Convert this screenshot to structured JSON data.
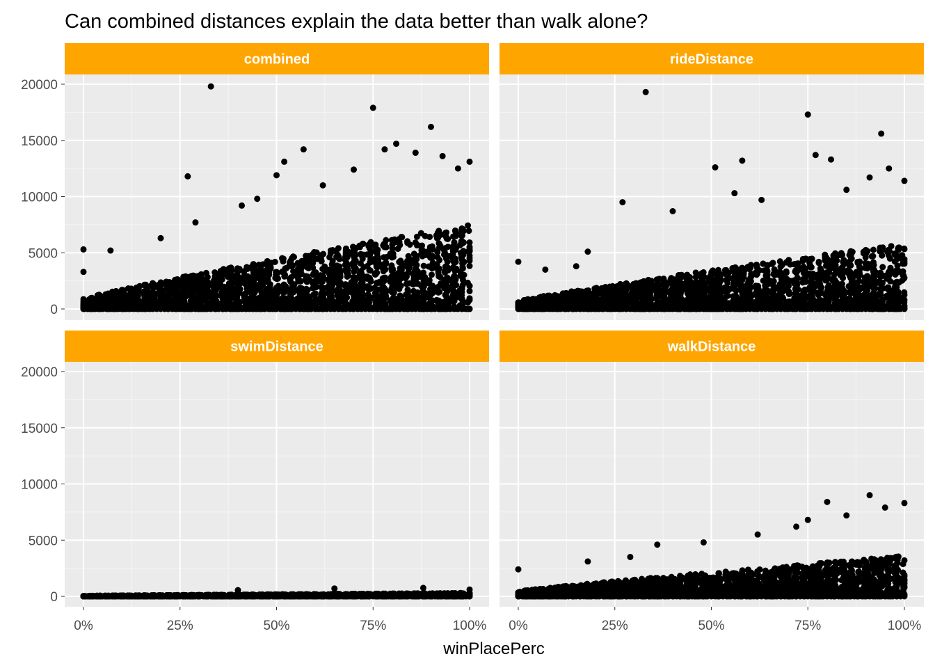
{
  "chart_data": {
    "type": "scatter",
    "title": "Can combined distances explain the data better than walk alone?",
    "xlabel": "winPlacePerc",
    "ylabel": "",
    "xlim": [
      0,
      1
    ],
    "ylim": [
      0,
      20000
    ],
    "x_ticks": [
      0,
      0.25,
      0.5,
      0.75,
      1.0
    ],
    "x_tick_labels": [
      "0%",
      "25%",
      "50%",
      "75%",
      "100%"
    ],
    "y_ticks": [
      0,
      5000,
      10000,
      15000,
      20000
    ],
    "y_tick_labels": [
      "0",
      "5000",
      "10000",
      "15000",
      "20000"
    ],
    "facet_strip_color": "#FFA500",
    "panel_background": "#EBEBEB",
    "point_color": "#000000",
    "panels": [
      {
        "label": "combined",
        "mean_ymax": 7500,
        "outliers": [
          [
            0.0,
            5300
          ],
          [
            0.0,
            3300
          ],
          [
            0.07,
            5200
          ],
          [
            0.2,
            6300
          ],
          [
            0.27,
            11800
          ],
          [
            0.29,
            7700
          ],
          [
            0.33,
            19800
          ],
          [
            0.41,
            9200
          ],
          [
            0.45,
            9800
          ],
          [
            0.5,
            11900
          ],
          [
            0.52,
            13100
          ],
          [
            0.57,
            14200
          ],
          [
            0.62,
            11000
          ],
          [
            0.7,
            12400
          ],
          [
            0.75,
            17900
          ],
          [
            0.78,
            14200
          ],
          [
            0.81,
            14700
          ],
          [
            0.86,
            13900
          ],
          [
            0.9,
            16200
          ],
          [
            0.93,
            13600
          ],
          [
            0.97,
            12500
          ],
          [
            1.0,
            13100
          ]
        ]
      },
      {
        "label": "rideDistance",
        "mean_ymax": 5800,
        "outliers": [
          [
            0.0,
            4200
          ],
          [
            0.07,
            3500
          ],
          [
            0.15,
            3800
          ],
          [
            0.18,
            5100
          ],
          [
            0.27,
            9500
          ],
          [
            0.33,
            19300
          ],
          [
            0.4,
            8700
          ],
          [
            0.51,
            12600
          ],
          [
            0.56,
            10300
          ],
          [
            0.58,
            13200
          ],
          [
            0.63,
            9700
          ],
          [
            0.75,
            17300
          ],
          [
            0.77,
            13700
          ],
          [
            0.81,
            13300
          ],
          [
            0.85,
            10600
          ],
          [
            0.91,
            11700
          ],
          [
            0.94,
            15600
          ],
          [
            0.96,
            12500
          ],
          [
            1.0,
            11400
          ]
        ]
      },
      {
        "label": "swimDistance",
        "mean_ymax": 300,
        "outliers": [
          [
            0.4,
            550
          ],
          [
            0.65,
            700
          ],
          [
            0.88,
            750
          ],
          [
            1.0,
            600
          ]
        ]
      },
      {
        "label": "walkDistance",
        "mean_ymax": 3600,
        "outliers": [
          [
            0.0,
            2400
          ],
          [
            0.18,
            3100
          ],
          [
            0.29,
            3500
          ],
          [
            0.36,
            4600
          ],
          [
            0.48,
            4800
          ],
          [
            0.62,
            5500
          ],
          [
            0.72,
            6200
          ],
          [
            0.75,
            6800
          ],
          [
            0.8,
            8400
          ],
          [
            0.85,
            7200
          ],
          [
            0.91,
            9000
          ],
          [
            0.95,
            7900
          ],
          [
            1.0,
            8300
          ]
        ]
      }
    ]
  }
}
